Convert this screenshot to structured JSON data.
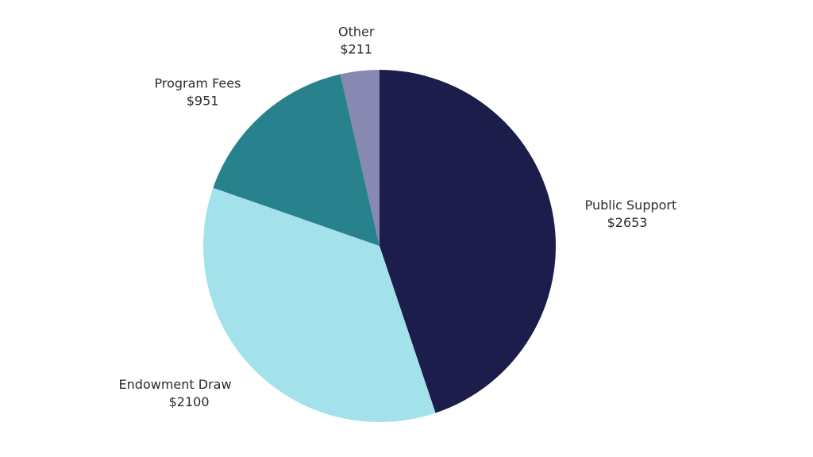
{
  "chart_data": {
    "type": "pie",
    "title": "",
    "slices": [
      {
        "label": "Public Support",
        "value": 2653,
        "display": "$2653",
        "color": "#1c1d4a"
      },
      {
        "label": "Endowment Draw",
        "value": 2100,
        "display": "$2100",
        "color": "#a3e2ea"
      },
      {
        "label": "Program Fees",
        "value": 951,
        "display": "$951",
        "color": "#28828e"
      },
      {
        "label": "Other",
        "value": 211,
        "display": "$211",
        "color": "#8889b2"
      }
    ],
    "start_angle_deg": 0,
    "direction": "clockwise",
    "legend": "none",
    "label_style": "outside"
  }
}
